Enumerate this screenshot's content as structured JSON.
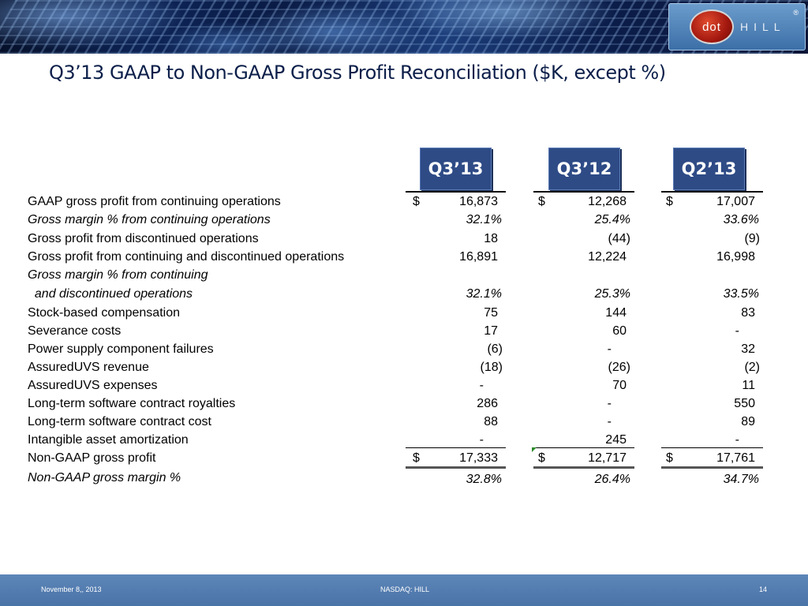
{
  "title": "Q3’13 GAAP to Non-GAAP Gross Profit Reconciliation ($K, except %)",
  "logo": {
    "text_dot": "dot",
    "text_hill": "HILL",
    "reg": "®"
  },
  "columns": [
    "Q3’13",
    "Q3’12",
    "Q2’13"
  ],
  "currency_symbol": "$",
  "rows": [
    {
      "label": "GAAP gross profit from continuing operations",
      "values": [
        "16,873",
        "12,268",
        "17,007"
      ]
    },
    {
      "label": "Gross margin % from continuing operations",
      "values": [
        "32.1%",
        "25.4%",
        "33.6%"
      ]
    },
    {
      "label": "Gross profit from discontinued operations",
      "values": [
        "18",
        "(44)",
        "(9)"
      ]
    },
    {
      "label": "Gross profit from continuing and discontinued operations",
      "values": [
        "16,891",
        "12,224",
        "16,998"
      ]
    },
    {
      "label": "Gross margin % from continuing",
      "values": [
        "",
        "",
        ""
      ]
    },
    {
      "label": "  and discontinued operations",
      "values": [
        "32.1%",
        "25.3%",
        "33.5%"
      ]
    },
    {
      "label": "Stock-based compensation",
      "values": [
        "75",
        "144",
        "83"
      ]
    },
    {
      "label": "Severance costs",
      "values": [
        "17",
        "60",
        "-"
      ]
    },
    {
      "label": "Power supply component failures",
      "values": [
        "(6)",
        "-",
        "32"
      ]
    },
    {
      "label": "AssuredUVS revenue",
      "values": [
        "(18)",
        "(26)",
        "(2)"
      ]
    },
    {
      "label": "AssuredUVS expenses",
      "values": [
        "-",
        "70",
        "11"
      ]
    },
    {
      "label": "Long-term software contract royalties",
      "values": [
        "286",
        "-",
        "550"
      ]
    },
    {
      "label": "Long-term software contract cost",
      "values": [
        "88",
        "-",
        "89"
      ]
    },
    {
      "label": "Intangible asset amortization",
      "values": [
        "-",
        "245",
        "-"
      ]
    },
    {
      "label": "Non-GAAP gross profit",
      "values": [
        "17,333",
        "12,717",
        "17,761"
      ]
    },
    {
      "label": "Non-GAAP gross margin %",
      "values": [
        "32.8%",
        "26.4%",
        "34.7%"
      ]
    }
  ],
  "footer": {
    "date": "November 8,, 2013",
    "ticker": "NASDAQ: HILL",
    "page": "14"
  },
  "colors": {
    "header_blue": "#2e4b86",
    "title_navy": "#0c1f4a",
    "footer_blue": "#4a73a8"
  }
}
